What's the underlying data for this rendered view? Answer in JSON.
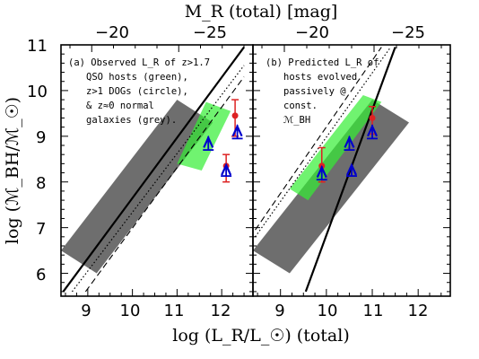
{
  "chart_data": {
    "type": "scatter",
    "y_axis": {
      "label": "log (ℳ_BH/ℳ_☉)",
      "ylim": [
        5.5,
        11.0
      ],
      "ticks": [
        "6",
        "7",
        "8",
        "9",
        "10",
        "11"
      ]
    },
    "x_axis_bottom": {
      "label": "log (L_R/L_☉) (total)",
      "ticks": [
        "9",
        "10",
        "11",
        "12"
      ]
    },
    "x_axis_top": {
      "label": "M_R (total) [mag]",
      "ticks": [
        "−20",
        "−25"
      ]
    },
    "panels": [
      {
        "id": "a",
        "xlim": [
          8.4,
          12.7
        ],
        "annotation": [
          "(a) Observed L_R of z>1.7",
          "QSO hosts (green),",
          "z>1 DOGs (circle),",
          "& z≈0 normal",
          "galaxies (grey)."
        ],
        "regions": {
          "grey": [
            [
              8.4,
              6.5
            ],
            [
              9.2,
              6.0
            ],
            [
              11.8,
              9.3
            ],
            [
              11.0,
              9.8
            ]
          ],
          "green": [
            [
              11.0,
              8.4
            ],
            [
              11.55,
              8.25
            ],
            [
              12.2,
              9.55
            ],
            [
              11.65,
              9.75
            ]
          ]
        },
        "relations": [
          {
            "style": "solid",
            "points": [
              [
                8.45,
                5.6
              ],
              [
                12.5,
                10.95
              ]
            ]
          },
          {
            "style": "dotted",
            "points": [
              [
                8.65,
                5.6
              ],
              [
                12.5,
                10.55
              ]
            ]
          },
          {
            "style": "dashed",
            "points": [
              [
                8.95,
                5.6
              ],
              [
                12.5,
                10.3
              ]
            ]
          }
        ],
        "red_points": [
          {
            "x": 12.3,
            "y": 9.45,
            "yerr_low": 9.0,
            "yerr_high": 9.8
          },
          {
            "x": 12.1,
            "y": 8.35,
            "yerr_low": 8.0,
            "yerr_high": 8.6
          }
        ],
        "blue_triangles": [
          {
            "x": 11.7,
            "y": 8.85,
            "err": 0.15
          },
          {
            "x": 12.35,
            "y": 9.1,
            "err": 0.15
          },
          {
            "x": 12.1,
            "y": 8.25,
            "err": 0.12
          }
        ]
      },
      {
        "id": "b",
        "xlim": [
          8.4,
          12.7
        ],
        "annotation": [
          "(b) Predicted L_R of",
          "hosts evolved",
          "passively @",
          "const.",
          "ℳ_BH"
        ],
        "regions": {
          "grey": [
            [
              8.4,
              6.5
            ],
            [
              9.2,
              6.0
            ],
            [
              11.8,
              9.3
            ],
            [
              11.0,
              9.8
            ]
          ],
          "green": [
            [
              9.2,
              7.85
            ],
            [
              9.6,
              7.6
            ],
            [
              11.2,
              9.75
            ],
            [
              10.8,
              9.9
            ]
          ]
        },
        "relations": [
          {
            "style": "solid",
            "points": [
              [
                9.55,
                5.6
              ],
              [
                11.5,
                10.95
              ]
            ]
          },
          {
            "style": "dotted",
            "points": [
              [
                8.45,
                6.8
              ],
              [
                11.4,
                10.95
              ]
            ]
          },
          {
            "style": "dashed",
            "points": [
              [
                8.45,
                6.95
              ],
              [
                11.2,
                10.95
              ]
            ]
          }
        ],
        "red_points": [
          {
            "x": 9.9,
            "y": 8.35,
            "yerr_low": 8.0,
            "yerr_high": 8.75
          },
          {
            "x": 11.0,
            "y": 9.4,
            "yerr_low": 9.05,
            "yerr_high": 9.65
          }
        ],
        "blue_triangles": [
          {
            "x": 9.9,
            "y": 8.2,
            "err": 0.15
          },
          {
            "x": 10.5,
            "y": 8.85,
            "err": 0.15
          },
          {
            "x": 11.0,
            "y": 9.1,
            "err": 0.15
          },
          {
            "x": 10.55,
            "y": 8.25,
            "err": 0.12
          }
        ]
      }
    ],
    "colors": {
      "grey_region": "#555555",
      "green_region": "#33ee33",
      "red_points": "#dd2222",
      "blue_triangles": "#0000cc"
    }
  }
}
